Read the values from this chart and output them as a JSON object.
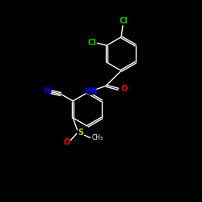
{
  "background_color": "#000000",
  "bond_color": "#ffffff",
  "atom_colors": {
    "Cl": "#00cc00",
    "N": "#0000ff",
    "O": "#ff0000",
    "S": "#cccc00",
    "C": "#ffffff",
    "H": "#ffffff"
  },
  "figsize": [
    2.5,
    2.5
  ],
  "dpi": 100
}
